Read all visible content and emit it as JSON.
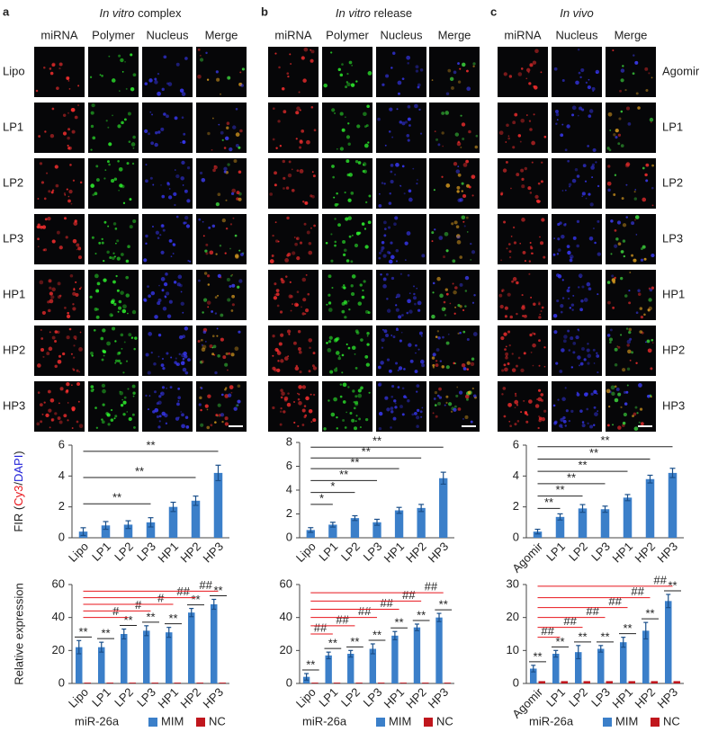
{
  "panels": [
    {
      "letter": "a",
      "title_italic": "In vitro",
      "title": "complex",
      "channels": [
        "miRNA",
        "Polymer",
        "Nucleus",
        "Merge"
      ],
      "channel_colors": [
        "#e8151b",
        "#18c418",
        "#2020d8",
        "#222222"
      ],
      "rows": [
        "Lipo",
        "LP1",
        "LP2",
        "LP3",
        "HP1",
        "HP2",
        "HP3"
      ]
    },
    {
      "letter": "b",
      "title_italic": "In vitro",
      "title": "release",
      "channels": [
        "miRNA",
        "Polymer",
        "Nucleus",
        "Merge"
      ],
      "channel_colors": [
        "#e8151b",
        "#18c418",
        "#2020d8",
        "#222222"
      ]
    },
    {
      "letter": "c",
      "title_italic": "In vivo",
      "channels": [
        "miRNA",
        "Nucleus",
        "Merge"
      ],
      "channel_colors": [
        "#e8151b",
        "#2020d8",
        "#222222"
      ],
      "rows": [
        "Agomir",
        "LP1",
        "LP2",
        "LP3",
        "HP1",
        "HP2",
        "HP3"
      ]
    }
  ],
  "chart_data": [
    {
      "type": "bar",
      "ylabel_parts": [
        "FIR (",
        "Cy3",
        "/",
        "DAPI",
        ")"
      ],
      "ylabel_colors": [
        "#222222",
        "#e8151b",
        "#222222",
        "#2020d8",
        "#222222"
      ],
      "categories": [
        "Lipo",
        "LP1",
        "LP2",
        "LP3",
        "HP1",
        "HP2",
        "HP3"
      ],
      "values": [
        0.4,
        0.8,
        0.85,
        1.0,
        2.0,
        2.4,
        4.2
      ],
      "errors": [
        0.25,
        0.25,
        0.25,
        0.3,
        0.3,
        0.3,
        0.5
      ],
      "color": "#3b7fc9",
      "ylim": [
        0,
        6
      ],
      "yticks": [
        0,
        2,
        4,
        6
      ],
      "significance": [
        {
          "from": 0,
          "to": 3,
          "y": 2.2,
          "label": "**"
        },
        {
          "from": 0,
          "to": 5,
          "y": 3.9,
          "label": "**"
        },
        {
          "from": 0,
          "to": 6,
          "y": 5.6,
          "label": "**"
        }
      ]
    },
    {
      "type": "bar",
      "categories": [
        "Lipo",
        "LP1",
        "LP2",
        "LP3",
        "HP1",
        "HP2",
        "HP3"
      ],
      "values": [
        0.65,
        1.1,
        1.65,
        1.3,
        2.3,
        2.5,
        5.0
      ],
      "errors": [
        0.2,
        0.2,
        0.2,
        0.25,
        0.25,
        0.3,
        0.5
      ],
      "color": "#3b7fc9",
      "ylim": [
        0,
        8
      ],
      "yticks": [
        0,
        2,
        4,
        6,
        8
      ],
      "significance": [
        {
          "from": 0,
          "to": 1,
          "y": 2.8,
          "label": "*"
        },
        {
          "from": 0,
          "to": 2,
          "y": 3.8,
          "label": "*"
        },
        {
          "from": 0,
          "to": 3,
          "y": 4.8,
          "label": "**"
        },
        {
          "from": 0,
          "to": 4,
          "y": 5.8,
          "label": "**"
        },
        {
          "from": 0,
          "to": 5,
          "y": 6.7,
          "label": "**"
        },
        {
          "from": 0,
          "to": 6,
          "y": 7.6,
          "label": "**"
        }
      ]
    },
    {
      "type": "bar",
      "categories": [
        "Agomir",
        "LP1",
        "LP2",
        "LP3",
        "HP1",
        "HP2",
        "HP3"
      ],
      "values": [
        0.4,
        1.35,
        1.9,
        1.85,
        2.6,
        3.8,
        4.2
      ],
      "errors": [
        0.15,
        0.2,
        0.25,
        0.2,
        0.2,
        0.25,
        0.3
      ],
      "color": "#3b7fc9",
      "ylim": [
        0,
        6
      ],
      "yticks": [
        0,
        2,
        4,
        6
      ],
      "significance": [
        {
          "from": 0,
          "to": 1,
          "y": 1.9,
          "label": "**"
        },
        {
          "from": 0,
          "to": 2,
          "y": 2.7,
          "label": "**"
        },
        {
          "from": 0,
          "to": 3,
          "y": 3.5,
          "label": "**"
        },
        {
          "from": 0,
          "to": 4,
          "y": 4.3,
          "label": "**"
        },
        {
          "from": 0,
          "to": 5,
          "y": 5.1,
          "label": "**"
        },
        {
          "from": 0,
          "to": 6,
          "y": 5.9,
          "label": "**"
        }
      ]
    },
    {
      "type": "grouped_bar",
      "ylabel": "Relative expression",
      "legend_title": "miR-26a",
      "categories": [
        "Lipo",
        "LP1",
        "LP2",
        "LP3",
        "HP1",
        "HP2",
        "HP3"
      ],
      "series": [
        {
          "name": "MIM",
          "color": "#3b7fc9",
          "values": [
            22,
            22,
            30,
            32,
            31,
            43,
            48
          ],
          "errors": [
            4,
            3,
            3,
            3,
            3,
            2.5,
            3
          ]
        },
        {
          "name": "NC",
          "color": "#c0161d",
          "values": [
            0.5,
            0.5,
            0.5,
            0.5,
            0.5,
            0.5,
            0.5
          ]
        }
      ],
      "stars": [
        "**",
        "**",
        "**",
        "**",
        "**",
        "**",
        "**"
      ],
      "ylim": [
        0,
        60
      ],
      "yticks": [
        0,
        20,
        40,
        60
      ],
      "significance_color": "#e8151b",
      "significance": [
        {
          "from": 0,
          "to": 2,
          "y": 40,
          "label": "#"
        },
        {
          "from": 0,
          "to": 3,
          "y": 44,
          "label": "#"
        },
        {
          "from": 0,
          "to": 4,
          "y": 48,
          "label": "#"
        },
        {
          "from": 0,
          "to": 5,
          "y": 52,
          "label": "##"
        },
        {
          "from": 0,
          "to": 6,
          "y": 56,
          "label": "##"
        }
      ]
    },
    {
      "type": "grouped_bar",
      "legend_title": "miR-26a",
      "categories": [
        "Lipo",
        "LP1",
        "LP2",
        "LP3",
        "HP1",
        "HP2",
        "HP3"
      ],
      "series": [
        {
          "name": "MIM",
          "color": "#3b7fc9",
          "values": [
            4,
            17,
            18,
            21,
            29,
            34,
            40
          ],
          "errors": [
            2,
            2,
            2,
            3,
            2.5,
            2,
            2.5
          ]
        },
        {
          "name": "NC",
          "color": "#c0161d",
          "values": [
            0.5,
            0.5,
            0.5,
            0.5,
            0.5,
            0.5,
            0.5
          ]
        }
      ],
      "stars": [
        "**",
        "**",
        "**",
        "**",
        "**",
        "**",
        "**"
      ],
      "ylim": [
        0,
        60
      ],
      "yticks": [
        0,
        20,
        40,
        60
      ],
      "significance_color": "#e8151b",
      "significance": [
        {
          "from": 0,
          "to": 1,
          "y": 30,
          "label": "##"
        },
        {
          "from": 0,
          "to": 2,
          "y": 35,
          "label": "##"
        },
        {
          "from": 0,
          "to": 3,
          "y": 40,
          "label": "##"
        },
        {
          "from": 0,
          "to": 4,
          "y": 45,
          "label": "##"
        },
        {
          "from": 0,
          "to": 5,
          "y": 50,
          "label": "##"
        },
        {
          "from": 0,
          "to": 6,
          "y": 55,
          "label": "##"
        }
      ]
    },
    {
      "type": "grouped_bar",
      "legend_title": "miR-26a",
      "categories": [
        "Agomir",
        "LP1",
        "LP2",
        "LP3",
        "HP1",
        "HP2",
        "HP3"
      ],
      "series": [
        {
          "name": "MIM",
          "color": "#3b7fc9",
          "values": [
            4.5,
            9,
            9.5,
            10.5,
            12.5,
            16,
            25
          ],
          "errors": [
            1,
            1,
            2,
            1,
            1.5,
            2.5,
            2
          ]
        },
        {
          "name": "NC",
          "color": "#c0161d",
          "values": [
            0.7,
            0.7,
            0.7,
            0.7,
            0.7,
            0.7,
            0.7
          ]
        }
      ],
      "stars": [
        "**",
        "**",
        "**",
        "**",
        "**",
        "**",
        "**"
      ],
      "ylim": [
        0,
        30
      ],
      "yticks": [
        0,
        10,
        20,
        30
      ],
      "significance_color": "#e8151b",
      "significance": [
        {
          "from": 0,
          "to": 1,
          "y": 14,
          "label": "##"
        },
        {
          "from": 0,
          "to": 2,
          "y": 17,
          "label": "##"
        },
        {
          "from": 0,
          "to": 3,
          "y": 20,
          "label": "##"
        },
        {
          "from": 0,
          "to": 4,
          "y": 23,
          "label": "##"
        },
        {
          "from": 0,
          "to": 5,
          "y": 26,
          "label": "##"
        },
        {
          "from": 0,
          "to": 6,
          "y": 29.5,
          "label": "##"
        }
      ]
    }
  ]
}
